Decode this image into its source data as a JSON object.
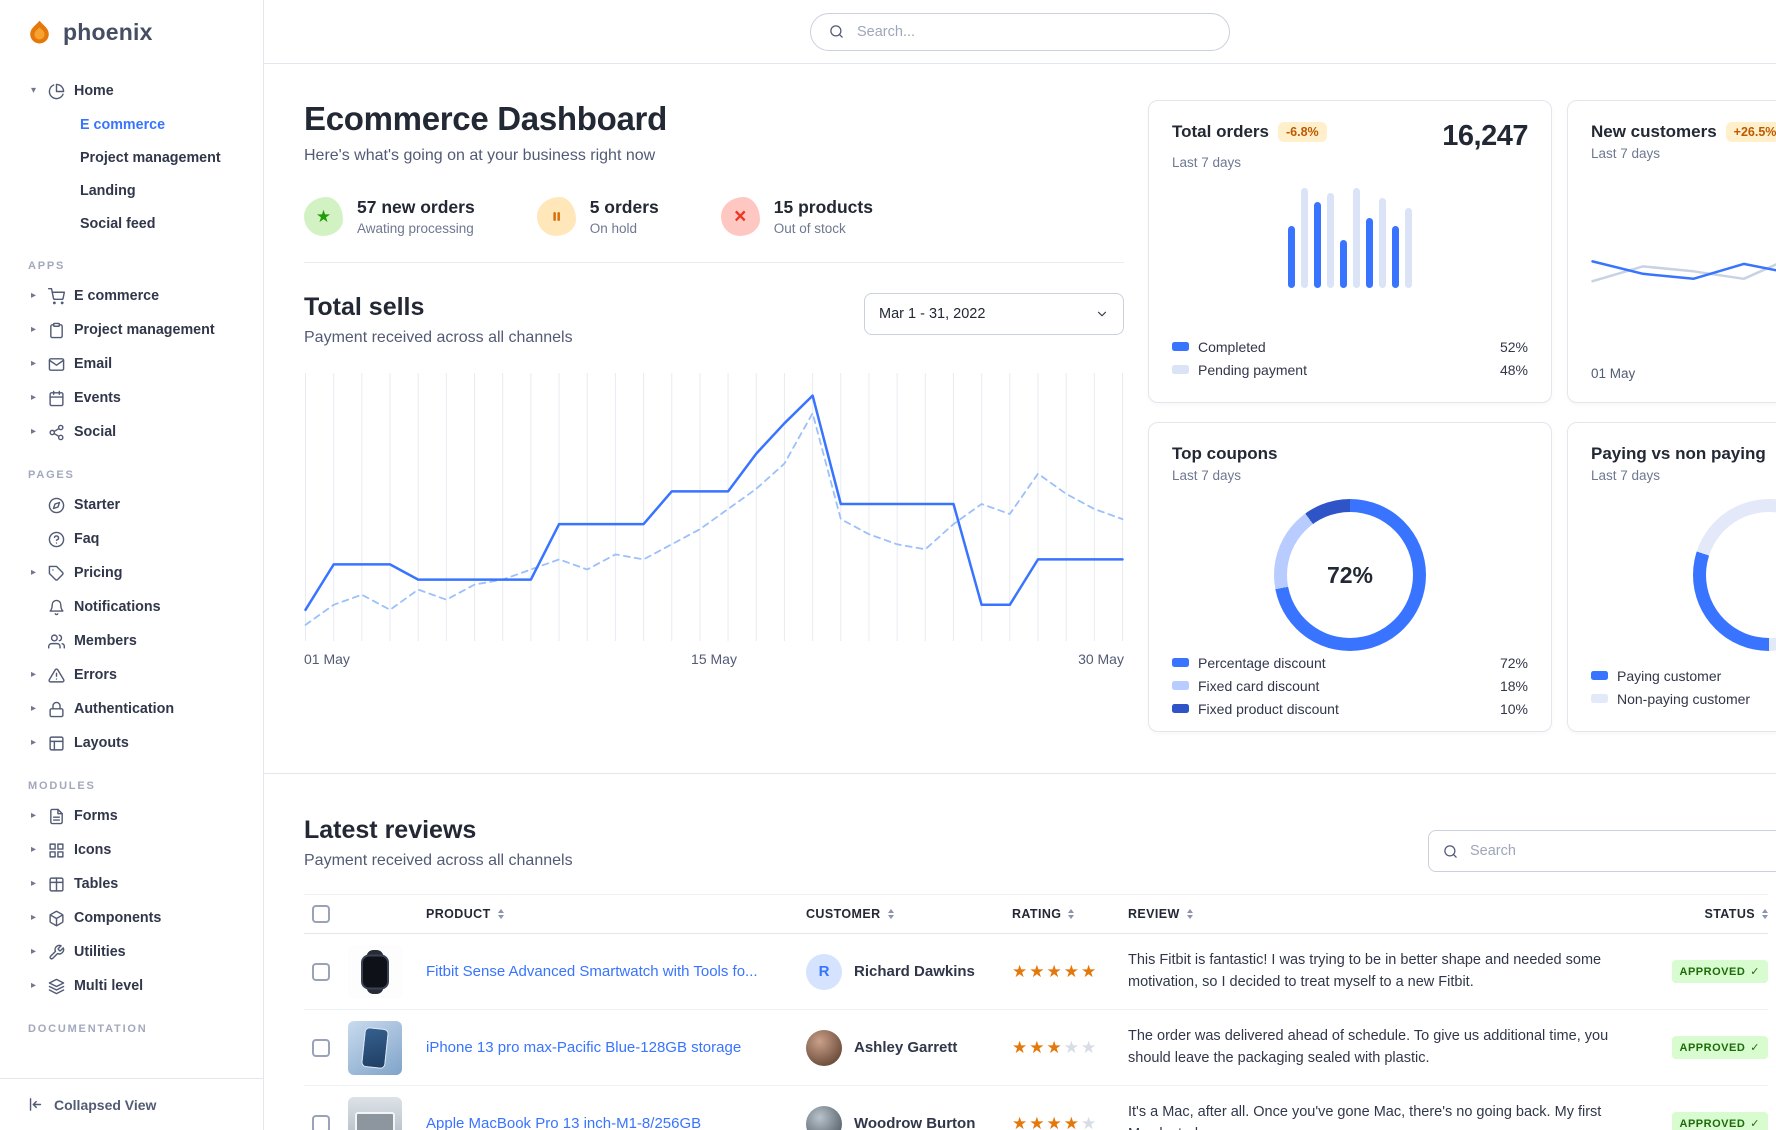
{
  "topbar": {
    "logo_text": "phoenix",
    "search_placeholder": "Search..."
  },
  "sidebar": {
    "home": {
      "label": "Home"
    },
    "home_children": [
      {
        "label": "E commerce",
        "active": true
      },
      {
        "label": "Project management",
        "active": false
      },
      {
        "label": "Landing",
        "active": false
      },
      {
        "label": "Social feed",
        "active": false
      }
    ],
    "apps_title": "APPS",
    "apps_items": [
      {
        "label": "E commerce"
      },
      {
        "label": "Project management"
      },
      {
        "label": "Email"
      },
      {
        "label": "Events"
      },
      {
        "label": "Social"
      }
    ],
    "pages_title": "PAGES",
    "pages_items": [
      {
        "label": "Starter"
      },
      {
        "label": "Faq"
      },
      {
        "label": "Pricing"
      },
      {
        "label": "Notifications"
      },
      {
        "label": "Members"
      },
      {
        "label": "Errors"
      },
      {
        "label": "Authentication"
      },
      {
        "label": "Layouts"
      }
    ],
    "modules_title": "MODULES",
    "modules_items": [
      {
        "label": "Forms"
      },
      {
        "label": "Icons"
      },
      {
        "label": "Tables"
      },
      {
        "label": "Components"
      },
      {
        "label": "Utilities"
      },
      {
        "label": "Multi level"
      }
    ],
    "documentation_title": "DOCUMENTATION",
    "collapsed_view_label": "Collapsed View"
  },
  "dashboard": {
    "title": "Ecommerce Dashboard",
    "subtitle": "Here's what's going on at your business right now",
    "stats": [
      {
        "value": "57 new orders",
        "caption": "Awating processing"
      },
      {
        "value": "5 orders",
        "caption": "On hold"
      },
      {
        "value": "15 products",
        "caption": "Out of stock"
      }
    ],
    "total_sells": {
      "title": "Total sells",
      "subtitle": "Payment received across all channels",
      "date_range": "Mar 1 - 31, 2022"
    }
  },
  "cards": {
    "total_orders": {
      "title": "Total orders",
      "badge": "-6.8%",
      "period": "Last 7 days",
      "value": "16,247",
      "legend": [
        {
          "label": "Completed",
          "value": "52%"
        },
        {
          "label": "Pending payment",
          "value": "48%"
        }
      ]
    },
    "new_customers": {
      "title": "New customers",
      "badge": "+26.5%",
      "period": "Last 7 days",
      "x_label": "01 May"
    },
    "top_coupons": {
      "title": "Top coupons",
      "period": "Last 7 days",
      "center_label": "72%",
      "legend": [
        {
          "label": "Percentage discount",
          "value": "72%"
        },
        {
          "label": "Fixed card discount",
          "value": "18%"
        },
        {
          "label": "Fixed product discount",
          "value": "10%"
        }
      ]
    },
    "paying": {
      "title": "Paying vs non paying",
      "period": "Last 7 days",
      "legend": [
        {
          "label": "Paying customer"
        },
        {
          "label": "Non-paying customer"
        }
      ]
    }
  },
  "reviews": {
    "title": "Latest reviews",
    "subtitle": "Payment received across all channels",
    "search_placeholder": "Search",
    "columns": [
      "PRODUCT",
      "CUSTOMER",
      "RATING",
      "REVIEW",
      "STATUS"
    ],
    "rows": [
      {
        "product": "Fitbit Sense Advanced Smartwatch with Tools fo...",
        "customer": "Richard Dawkins",
        "avatar_initial": "R",
        "rating": 5,
        "review": "This Fitbit is fantastic! I was trying to be in better shape and needed some motivation, so I decided to treat myself to a new Fitbit.",
        "status": "APPROVED"
      },
      {
        "product": "iPhone 13 pro max-Pacific Blue-128GB storage",
        "customer": "Ashley Garrett",
        "rating": 3,
        "review": "The order was delivered ahead of schedule. To give us additional time, you should leave the packaging sealed with plastic.",
        "status": "APPROVED"
      },
      {
        "product": "Apple MacBook Pro 13 inch-M1-8/256GB",
        "customer": "Woodrow Burton",
        "rating": 4,
        "review": "It's a Mac, after all. Once you've gone Mac, there's no going back. My first Mac lasted",
        "status": "APPROVED"
      }
    ]
  },
  "chart_data": [
    {
      "name": "total-sells",
      "type": "line",
      "title": "Total sells",
      "x_ticks": [
        "01 May",
        "15 May",
        "30 May"
      ],
      "ylim": [
        0,
        100
      ],
      "grid": "vertical",
      "legend_position": "none",
      "series": [
        {
          "name": "Total sells",
          "style": "solid",
          "color": "#3874ff",
          "values": [
            10,
            28,
            28,
            28,
            22,
            22,
            22,
            22,
            22,
            44,
            44,
            44,
            44,
            57,
            57,
            57,
            72,
            84,
            95,
            52,
            52,
            52,
            52,
            52,
            12,
            12,
            30,
            30,
            30,
            30
          ]
        },
        {
          "name": "secondary",
          "style": "dashed",
          "color": "#9cc0fb",
          "values": [
            4,
            12,
            16,
            10,
            18,
            14,
            20,
            22,
            26,
            30,
            26,
            32,
            30,
            36,
            42,
            50,
            58,
            68,
            88,
            46,
            40,
            36,
            34,
            44,
            52,
            48,
            64,
            56,
            50,
            46
          ]
        }
      ]
    },
    {
      "name": "total-orders-bars",
      "type": "bar",
      "title": "Total orders",
      "value_total": "16,247",
      "series": [
        {
          "name": "Completed",
          "color": "#3874ff",
          "share": 52
        },
        {
          "name": "Pending payment",
          "color": "#dbe3f7",
          "share": 48
        }
      ],
      "bars": [
        {
          "value": 62,
          "series": 0
        },
        {
          "value": 100,
          "series": 1
        },
        {
          "value": 86,
          "series": 0
        },
        {
          "value": 95,
          "series": 1
        },
        {
          "value": 48,
          "series": 0
        },
        {
          "value": 100,
          "series": 1
        },
        {
          "value": 70,
          "series": 0
        },
        {
          "value": 90,
          "series": 1
        },
        {
          "value": 62,
          "series": 0
        },
        {
          "value": 80,
          "series": 1
        }
      ]
    },
    {
      "name": "new-customers",
      "type": "line",
      "title": "New customers",
      "x_ticks": [
        "01 May"
      ],
      "ylim": [
        0,
        100
      ],
      "series": [
        {
          "name": "New customers",
          "style": "solid",
          "color": "#3874ff",
          "values": [
            40,
            30,
            26,
            38,
            30,
            55,
            42,
            60
          ]
        },
        {
          "name": "secondary",
          "style": "solid",
          "color": "#c9d2e3",
          "values": [
            24,
            36,
            32,
            26,
            44,
            36,
            52,
            46
          ]
        }
      ]
    },
    {
      "name": "top-coupons",
      "type": "donut",
      "title": "Top coupons",
      "center_label": "72%",
      "slices": [
        {
          "label": "Percentage discount",
          "value": 72,
          "color": "#3874ff"
        },
        {
          "label": "Fixed card discount",
          "value": 18,
          "color": "#b9ccff"
        },
        {
          "label": "Fixed product discount",
          "value": 10,
          "color": "#2e54c7"
        }
      ]
    },
    {
      "name": "paying-gauge",
      "type": "donut",
      "title": "Paying vs non paying",
      "start_angle": 180,
      "slices": [
        {
          "label": "Paying customer",
          "value": 30,
          "color": "#3874ff"
        },
        {
          "label": "Non-paying customer",
          "value": 70,
          "color": "#e3e9f8"
        }
      ]
    }
  ]
}
